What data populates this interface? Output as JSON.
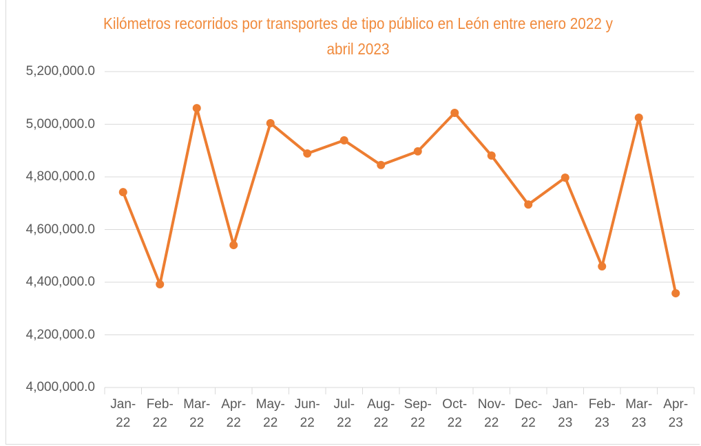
{
  "chart_data": {
    "type": "line",
    "title": "Kilómetros recorridos por transportes de tipo público en León entre enero 2022 y abril 2023",
    "categories": [
      "Jan-22",
      "Feb-22",
      "Mar-22",
      "Apr-22",
      "May-22",
      "Jun-22",
      "Jul-22",
      "Aug-22",
      "Sep-22",
      "Oct-22",
      "Nov-22",
      "Dec-22",
      "Jan-23",
      "Feb-23",
      "Mar-23",
      "Apr-23"
    ],
    "values": [
      4742000,
      4392000,
      5061000,
      4541000,
      5004000,
      4889000,
      4939000,
      4845000,
      4897000,
      5043000,
      4881000,
      4695000,
      4797000,
      4460000,
      5025000,
      4358000
    ],
    "color": "#ed7d31",
    "ylim": [
      4000000,
      5200000
    ],
    "yticks": [
      {
        "value": 4000000,
        "label": "4,000,000.0"
      },
      {
        "value": 4200000,
        "label": "4,200,000.0"
      },
      {
        "value": 4400000,
        "label": "4,400,000.0"
      },
      {
        "value": 4600000,
        "label": "4,600,000.0"
      },
      {
        "value": 4800000,
        "label": "4,800,000.0"
      },
      {
        "value": 5000000,
        "label": "5,000,000.0"
      },
      {
        "value": 5200000,
        "label": "5,200,000.0"
      }
    ],
    "grid": true
  }
}
